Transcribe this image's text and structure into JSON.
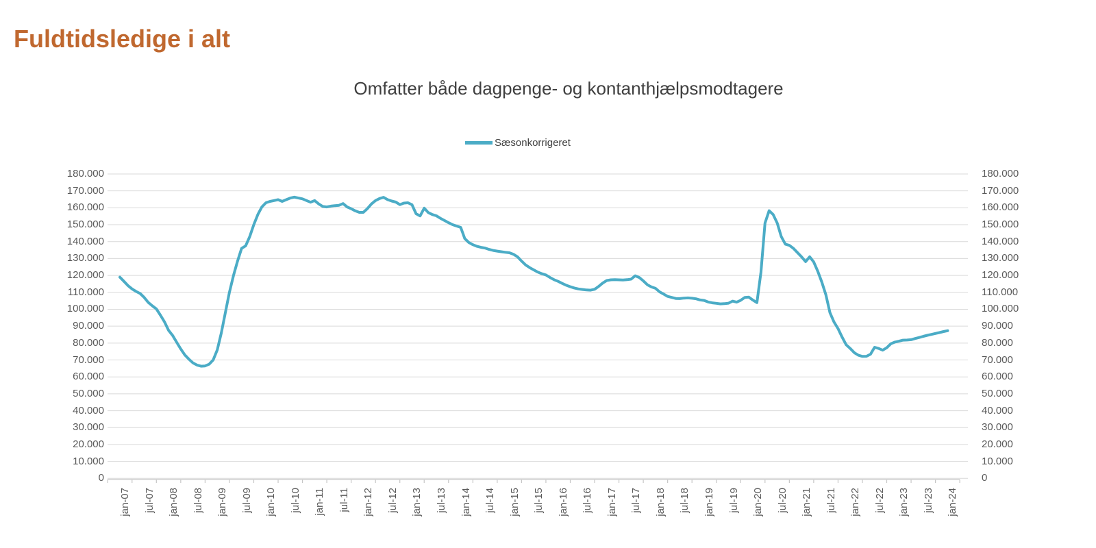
{
  "page": {
    "title": "Fuldtidsledige i alt",
    "title_color": "#C0682F",
    "subtitle": "Omfatter både dagpenge- og kontanthjælpsmodtagere"
  },
  "legend": {
    "label": "Sæsonkorrigeret",
    "marker_color": "#4BACC6"
  },
  "colors": {
    "line": "#4BACC6",
    "grid": "#D9D9D9",
    "axis": "#C6C6C6",
    "tick_label": "#595959",
    "subtitle_text": "#3F3F3F"
  },
  "chart_data": {
    "type": "line",
    "title": "Omfatter både dagpenge- og kontanthjælpsmodtagere",
    "x_unit": "month",
    "x_start": "jan-07",
    "x_end": "jan-24",
    "grid": "horizontal",
    "legend_position": "top-center",
    "dual_y_axis": true,
    "ylim": [
      0,
      180000
    ],
    "y_tick_step": 10000,
    "y_tick_labels": [
      "180.000",
      "170.000",
      "160.000",
      "150.000",
      "140.000",
      "130.000",
      "120.000",
      "110.000",
      "100.000",
      "90.000",
      "80.000",
      "70.000",
      "60.000",
      "50.000",
      "40.000",
      "30.000",
      "20.000",
      "10.000",
      "0"
    ],
    "x_tick_labels": [
      "jan-07",
      "jul-07",
      "jan-08",
      "jul-08",
      "jan-09",
      "jul-09",
      "jan-10",
      "jul-10",
      "jan-11",
      "jul-11",
      "jan-12",
      "jul-12",
      "jan-13",
      "jul-13",
      "jan-14",
      "jul-14",
      "jan-15",
      "jul-15",
      "jan-16",
      "jul-16",
      "jan-17",
      "jul-17",
      "jan-18",
      "jul-18",
      "jan-19",
      "jul-19",
      "jan-20",
      "jul-20",
      "jan-21",
      "jul-21",
      "jan-22",
      "jul-22",
      "jan-23",
      "jul-23",
      "jan-24"
    ],
    "series": [
      {
        "name": "Sæsonkorrigeret",
        "color": "#4BACC6",
        "values": [
          119000,
          116500,
          114000,
          112000,
          110500,
          109300,
          107000,
          104000,
          102000,
          100200,
          96500,
          92500,
          87500,
          84500,
          80500,
          76500,
          73000,
          70500,
          68300,
          67000,
          66300,
          66500,
          67500,
          70000,
          76000,
          86000,
          98000,
          110000,
          120000,
          128500,
          136000,
          137500,
          143000,
          150000,
          156000,
          160500,
          163000,
          163800,
          164300,
          164800,
          163800,
          164800,
          165800,
          166300,
          165800,
          165300,
          164300,
          163300,
          164300,
          162300,
          160800,
          160500,
          161000,
          161300,
          161500,
          162500,
          160500,
          159500,
          158200,
          157300,
          157300,
          159500,
          162300,
          164300,
          165500,
          166200,
          164800,
          164000,
          163400,
          161900,
          162800,
          163000,
          161800,
          156500,
          155200,
          159800,
          157200,
          156000,
          155300,
          153800,
          152500,
          151200,
          150000,
          149200,
          148400,
          141800,
          139500,
          138200,
          137200,
          136600,
          136200,
          135400,
          134800,
          134400,
          134000,
          133700,
          133400,
          132500,
          131000,
          128500,
          126200,
          124600,
          123300,
          122000,
          121000,
          120300,
          118800,
          117500,
          116500,
          115300,
          114200,
          113300,
          112600,
          112000,
          111700,
          111400,
          111300,
          111800,
          113500,
          115500,
          117000,
          117400,
          117500,
          117400,
          117300,
          117500,
          117800,
          119800,
          118800,
          116800,
          114500,
          113200,
          112400,
          110300,
          109000,
          107600,
          107000,
          106400,
          106300,
          106600,
          106700,
          106500,
          106200,
          105500,
          105200,
          104300,
          103800,
          103500,
          103200,
          103300,
          103600,
          104800,
          104200,
          105300,
          107000,
          107200,
          105400,
          103900,
          122000,
          151000,
          158300,
          156000,
          151000,
          143000,
          138500,
          137800,
          136000,
          133500,
          131000,
          128200,
          131000,
          128000,
          122500,
          116000,
          108500,
          98000,
          92500,
          88500,
          83500,
          79000,
          76800,
          74300,
          72800,
          72100,
          72200,
          73400,
          77500,
          76800,
          75800,
          77200,
          79600,
          80600,
          81100,
          81700,
          81800,
          82000,
          82700,
          83300,
          84000,
          84600,
          85100,
          85700,
          86200,
          86800,
          87300
        ]
      }
    ]
  }
}
